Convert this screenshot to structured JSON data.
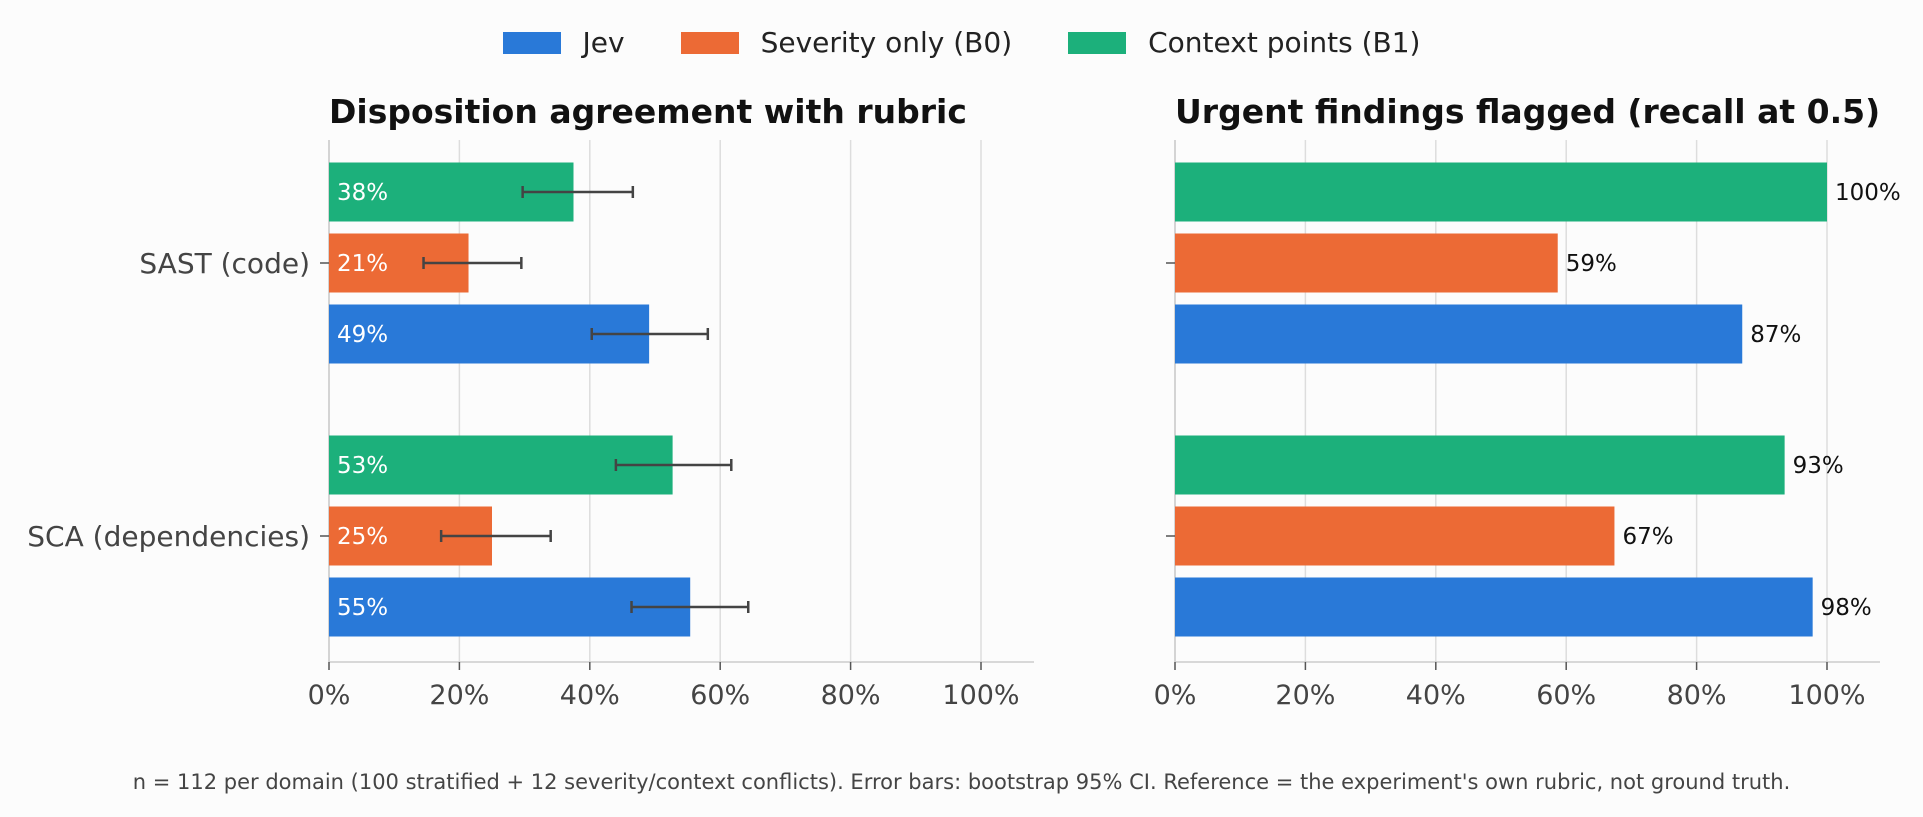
{
  "legend": [
    {
      "label": "Jev",
      "color": "#2979d8"
    },
    {
      "label": "Severity only (B0)",
      "color": "#ec6a35"
    },
    {
      "label": "Context points (B1)",
      "color": "#1cb07b"
    }
  ],
  "footnote": "n = 112 per domain (100 stratified + 12 severity/context conflicts). Error bars: bootstrap 95% CI. Reference = the experiment's own rubric, not ground truth.",
  "chart_data": [
    {
      "type": "bar",
      "orientation": "horizontal",
      "title": "Disposition agreement with rubric",
      "categories": [
        "SAST (code)",
        "SCA (dependencies)"
      ],
      "xlim": [
        0,
        1.08
      ],
      "xticks": [
        "0%",
        "20%",
        "40%",
        "60%",
        "80%",
        "100%"
      ],
      "grid": true,
      "series": [
        {
          "name": "Context points (B1)",
          "color": "#1cb07b",
          "values": [
            0.375,
            0.527
          ],
          "labels": [
            "38%",
            "53%"
          ],
          "ci": [
            [
              0.297,
              0.466
            ],
            [
              0.44,
              0.617
            ]
          ]
        },
        {
          "name": "Severity only (B0)",
          "color": "#ec6a35",
          "values": [
            0.214,
            0.25
          ],
          "labels": [
            "21%",
            "25%"
          ],
          "ci": [
            [
              0.145,
              0.295
            ],
            [
              0.172,
              0.34
            ]
          ]
        },
        {
          "name": "Jev",
          "color": "#2979d8",
          "values": [
            0.491,
            0.554
          ],
          "labels": [
            "49%",
            "55%"
          ],
          "ci": [
            [
              0.403,
              0.581
            ],
            [
              0.464,
              0.643
            ]
          ]
        }
      ]
    },
    {
      "type": "bar",
      "orientation": "horizontal",
      "title": "Urgent findings flagged (recall at 0.5)",
      "categories": [
        "SAST (code)",
        "SCA (dependencies)"
      ],
      "xlim": [
        0,
        1.08
      ],
      "xticks": [
        "0%",
        "20%",
        "40%",
        "60%",
        "80%",
        "100%"
      ],
      "grid": true,
      "series": [
        {
          "name": "Context points (B1)",
          "color": "#1cb07b",
          "values": [
            1.0,
            0.935
          ],
          "labels": [
            "100%",
            "93%"
          ]
        },
        {
          "name": "Severity only (B0)",
          "color": "#ec6a35",
          "values": [
            0.587,
            0.674
          ],
          "labels": [
            "59%",
            "67%"
          ]
        },
        {
          "name": "Jev",
          "color": "#2979d8",
          "values": [
            0.87,
            0.978
          ],
          "labels": [
            "87%",
            "98%"
          ]
        }
      ]
    }
  ]
}
